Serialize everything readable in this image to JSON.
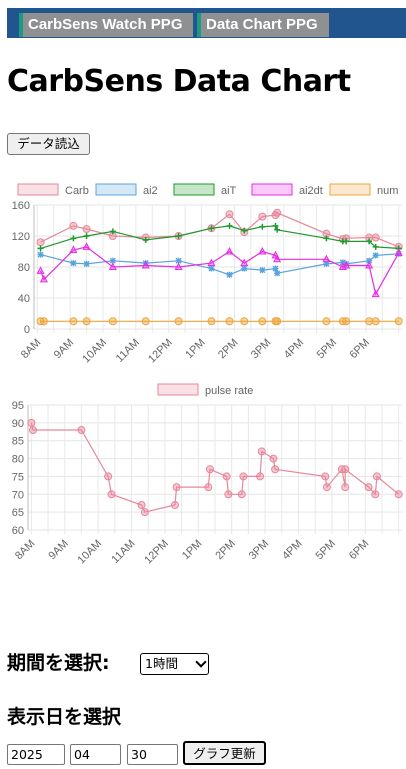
{
  "nav": {
    "tabs": [
      {
        "label": "CarbSens Watch PPG"
      },
      {
        "label": "Data Chart PPG"
      }
    ]
  },
  "page": {
    "title": "CarbSens Data Chart",
    "load_button": "データ読込"
  },
  "chart_data": [
    {
      "type": "line",
      "x_ticks": [
        "8AM",
        "9AM",
        "10AM",
        "11AM",
        "12PM",
        "1PM",
        "2PM",
        "3PM",
        "4PM",
        "5PM",
        "6PM"
      ],
      "ylim": [
        0,
        160
      ],
      "y_ticks": [
        0,
        40,
        80,
        120,
        160
      ],
      "grid": true,
      "legend": "top",
      "series": [
        {
          "name": "Carb",
          "color": "#e7879b",
          "x": [
            8.1,
            9.1,
            9.5,
            10.3,
            11.3,
            12.3,
            13.3,
            13.85,
            14.3,
            14.85,
            15.25,
            15.3,
            16.8,
            17.3,
            17.4,
            18.1,
            18.3,
            19.0
          ],
          "y": [
            112,
            133,
            129,
            120,
            118,
            120,
            130,
            148,
            125,
            145,
            147,
            150,
            123,
            116,
            117,
            118,
            118,
            106
          ]
        },
        {
          "name": "ai2",
          "color": "#5aa4dc",
          "x": [
            8.1,
            9.1,
            9.5,
            10.3,
            11.3,
            12.3,
            13.3,
            13.85,
            14.3,
            14.85,
            15.25,
            15.3,
            16.8,
            17.3,
            17.4,
            18.1,
            18.3,
            19.0
          ],
          "y": [
            96,
            85,
            84,
            88,
            85,
            88,
            78,
            70,
            78,
            76,
            78,
            72,
            84,
            86,
            84,
            88,
            95,
            97
          ]
        },
        {
          "name": "aiT",
          "color": "#1d9a2a",
          "x": [
            8.1,
            9.1,
            9.5,
            10.3,
            11.3,
            12.3,
            13.3,
            13.85,
            14.3,
            14.85,
            15.25,
            15.3,
            16.8,
            17.3,
            17.4,
            18.1,
            18.3,
            19.0
          ],
          "y": [
            104,
            117,
            120,
            126,
            115,
            120,
            130,
            133,
            127,
            132,
            133,
            128,
            117,
            113,
            113,
            113,
            106,
            104
          ]
        },
        {
          "name": "ai2dt",
          "color": "#e62be6",
          "x": [
            8.1,
            8.2,
            9.1,
            9.5,
            10.3,
            11.3,
            12.3,
            13.3,
            13.85,
            14.3,
            14.85,
            15.25,
            15.3,
            16.8,
            17.3,
            17.4,
            18.1,
            18.3,
            19.0
          ],
          "y": [
            75,
            64,
            102,
            106,
            80,
            82,
            80,
            85,
            100,
            85,
            100,
            95,
            90,
            90,
            80,
            82,
            82,
            45,
            98
          ]
        },
        {
          "name": "num",
          "color": "#eea43a",
          "x": [
            8.1,
            8.2,
            9.1,
            9.5,
            10.3,
            11.3,
            12.3,
            13.3,
            13.85,
            14.3,
            14.85,
            15.25,
            15.3,
            16.8,
            17.3,
            17.4,
            18.1,
            18.3,
            19.0
          ],
          "y": [
            10,
            10,
            10,
            10,
            10,
            10,
            10,
            10,
            10,
            10,
            10,
            10,
            10,
            10,
            10,
            10,
            10,
            10,
            10
          ]
        }
      ]
    },
    {
      "type": "line",
      "x_ticks": [
        "8AM",
        "9AM",
        "10AM",
        "11AM",
        "12PM",
        "1PM",
        "2PM",
        "3PM",
        "4PM",
        "5PM",
        "6PM"
      ],
      "ylim": [
        60,
        95
      ],
      "y_ticks": [
        60,
        65,
        70,
        75,
        80,
        85,
        90,
        95
      ],
      "grid": true,
      "legend": "top",
      "series": [
        {
          "name": "pulse rate",
          "color": "#e7879b",
          "x": [
            8.0,
            8.05,
            9.5,
            10.3,
            10.4,
            11.3,
            11.4,
            12.3,
            12.35,
            13.3,
            13.35,
            13.85,
            13.9,
            14.3,
            14.35,
            14.85,
            14.9,
            15.25,
            15.3,
            16.8,
            16.85,
            17.3,
            17.4,
            17.4,
            18.1,
            18.3,
            18.35,
            19.0
          ],
          "y": [
            90,
            88,
            88,
            75,
            70,
            67,
            65,
            67,
            72,
            72,
            77,
            75,
            70,
            70,
            75,
            75,
            82,
            80,
            77,
            75,
            72,
            77,
            72,
            77,
            72,
            70,
            75,
            70
          ]
        }
      ]
    }
  ],
  "controls": {
    "period_label": "期間を選択:",
    "period_value": "1時間",
    "date_label": "表示日を選択",
    "year": "2025",
    "month": "04",
    "day": "30",
    "update_button": "グラフ更新"
  }
}
